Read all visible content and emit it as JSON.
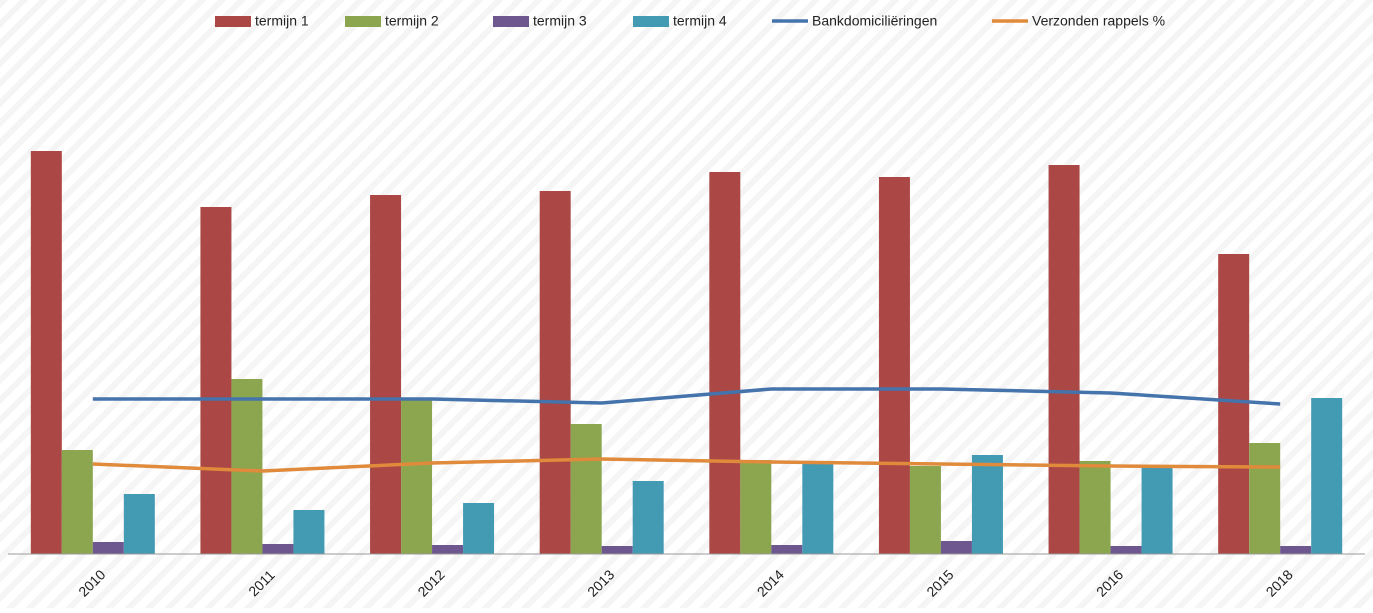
{
  "chart_data": {
    "type": "bar",
    "categories": [
      "2010",
      "2011",
      "2012",
      "2013",
      "2014",
      "2015",
      "2016",
      "2018"
    ],
    "ylim": [
      0,
      100
    ],
    "series": [
      {
        "name": "termijn 1",
        "type": "bar",
        "color": "#ab4745",
        "values": [
          80.6,
          69.4,
          71.8,
          72.6,
          76.4,
          75.4,
          77.8,
          60
        ]
      },
      {
        "name": "termijn 2",
        "type": "bar",
        "color": "#8ba64f",
        "values": [
          20.8,
          35,
          31,
          26,
          18.8,
          17.6,
          18.6,
          22.2
        ]
      },
      {
        "name": "termijn 3",
        "type": "bar",
        "color": "#6e578f",
        "values": [
          2.4,
          2,
          1.8,
          1.6,
          1.8,
          2.6,
          1.6,
          1.6
        ]
      },
      {
        "name": "termijn 4",
        "type": "bar",
        "color": "#439ab3",
        "values": [
          12,
          8.8,
          10.2,
          14.6,
          18.2,
          19.8,
          17.6,
          31.2
        ]
      },
      {
        "name": "Bankdomiciliëringen",
        "type": "line",
        "color": "#4573ab",
        "values": [
          31,
          31,
          31,
          30.2,
          33,
          33,
          32.2,
          30
        ]
      },
      {
        "name": "Verzonden rappels %",
        "type": "line",
        "color": "#e08a3b",
        "values": [
          18,
          16.6,
          18.2,
          19,
          18.4,
          18,
          17.6,
          17.4
        ]
      }
    ]
  }
}
